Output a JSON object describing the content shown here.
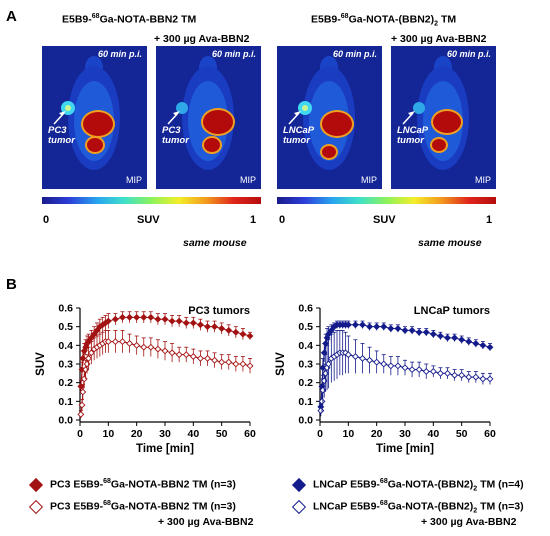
{
  "panel_a": {
    "letter": "A",
    "header_left_pre": "E5B9-",
    "header_left_sup": "68",
    "header_left_post": "Ga-NOTA-BBN2 TM",
    "header_right_pre": "E5B9-",
    "header_right_sup": "68",
    "header_right_mid": "Ga-NOTA-(BBN2)",
    "header_right_sub": "2",
    "header_right_post": " TM",
    "block_label_1": "+ 300 µg Ava-BBN2",
    "block_label_2": "+ 300 µg Ava-BBN2",
    "images": [
      {
        "time": "60 min p.i.",
        "tumor_line1": "PC3",
        "tumor_line2": "tumor",
        "mip": "MIP"
      },
      {
        "time": "60 min p.i.",
        "tumor_line1": "PC3",
        "tumor_line2": "tumor",
        "mip": "MIP"
      },
      {
        "time": "60 min p.i.",
        "tumor_line1": "LNCaP",
        "tumor_line2": "tumor",
        "mip": "MIP"
      },
      {
        "time": "60 min p.i.",
        "tumor_line1": "LNCaP",
        "tumor_line2": "tumor",
        "mip": "MIP"
      }
    ],
    "colorbar": {
      "min": "0",
      "label": "SUV",
      "max": "1"
    },
    "same_mouse": "same mouse",
    "colors": {
      "background": "#142596",
      "hot": "#b30b0b",
      "tumor_glow": "#3fd8f0"
    }
  },
  "panel_b": {
    "letter": "B",
    "legend": [
      {
        "pre": "PC3 E5B9-",
        "sup": "68",
        "post": "Ga-NOTA-BBN2 TM (n=3)",
        "filled": true,
        "color": "#a31212"
      },
      {
        "pre": "PC3 E5B9-",
        "sup": "68",
        "post": "Ga-NOTA-BBN2 TM (n=3)",
        "filled": false,
        "color": "#a31212",
        "sub_line": "+ 300 µg Ava-BBN2"
      },
      {
        "pre": "LNCaP E5B9-",
        "sup": "68",
        "mid": "Ga-NOTA-(BBN2)",
        "sub": "2",
        "post": " TM (n=4)",
        "filled": true,
        "color": "#141b8a"
      },
      {
        "pre": "LNCaP E5B9-",
        "sup": "68",
        "mid": "Ga-NOTA-(BBN2)",
        "sub": "2",
        "post": " TM (n=3)",
        "filled": false,
        "color": "#141b8a",
        "sub_line": "+ 300 µg Ava-BBN2"
      }
    ]
  },
  "chart_data": [
    {
      "type": "scatter",
      "title": "PC3 tumors",
      "xlabel": "Time [min]",
      "ylabel": "SUV",
      "xlim": [
        0,
        60
      ],
      "ylim": [
        0,
        0.6
      ],
      "x_ticks": [
        0,
        10,
        20,
        30,
        40,
        50,
        60
      ],
      "y_ticks": [
        0.0,
        0.1,
        0.2,
        0.3,
        0.4,
        0.5,
        0.6
      ],
      "series": [
        {
          "color": "#a31212",
          "filled": true,
          "x": [
            0.3,
            0.7,
            1.0,
            1.5,
            2.0,
            2.5,
            3.0,
            4.0,
            5.0,
            6.0,
            7.0,
            8.0,
            9.0,
            10.0,
            12.5,
            15.0,
            17.5,
            20.0,
            22.5,
            25.0,
            27.5,
            30.0,
            32.5,
            35.0,
            37.5,
            40.0,
            42.5,
            45.0,
            47.5,
            50.0,
            52.5,
            55.0,
            57.5,
            60.0
          ],
          "y": [
            0.18,
            0.27,
            0.33,
            0.37,
            0.39,
            0.41,
            0.42,
            0.44,
            0.46,
            0.48,
            0.5,
            0.51,
            0.52,
            0.53,
            0.54,
            0.55,
            0.55,
            0.55,
            0.55,
            0.55,
            0.54,
            0.54,
            0.53,
            0.53,
            0.52,
            0.52,
            0.51,
            0.5,
            0.5,
            0.49,
            0.48,
            0.47,
            0.46,
            0.45
          ],
          "err": [
            0.03,
            0.04,
            0.04,
            0.04,
            0.04,
            0.04,
            0.04,
            0.04,
            0.04,
            0.04,
            0.04,
            0.04,
            0.04,
            0.04,
            0.03,
            0.03,
            0.03,
            0.03,
            0.03,
            0.03,
            0.03,
            0.03,
            0.03,
            0.03,
            0.03,
            0.03,
            0.03,
            0.03,
            0.03,
            0.03,
            0.03,
            0.03,
            0.03,
            0.02
          ]
        },
        {
          "color": "#a31212",
          "filled": false,
          "x": [
            0.3,
            0.7,
            1.0,
            1.5,
            2.0,
            2.5,
            3.0,
            4.0,
            5.0,
            6.0,
            7.0,
            8.0,
            9.0,
            10.0,
            12.5,
            15.0,
            17.5,
            20.0,
            22.5,
            25.0,
            27.5,
            30.0,
            32.5,
            35.0,
            37.5,
            40.0,
            42.5,
            45.0,
            47.5,
            50.0,
            52.5,
            55.0,
            57.5,
            60.0
          ],
          "y": [
            0.03,
            0.08,
            0.15,
            0.22,
            0.27,
            0.3,
            0.33,
            0.36,
            0.38,
            0.39,
            0.4,
            0.41,
            0.42,
            0.42,
            0.42,
            0.42,
            0.41,
            0.4,
            0.39,
            0.39,
            0.38,
            0.37,
            0.36,
            0.35,
            0.35,
            0.34,
            0.33,
            0.33,
            0.32,
            0.31,
            0.31,
            0.3,
            0.3,
            0.29
          ],
          "err": [
            0.02,
            0.03,
            0.04,
            0.05,
            0.05,
            0.05,
            0.06,
            0.06,
            0.06,
            0.06,
            0.06,
            0.06,
            0.06,
            0.06,
            0.06,
            0.06,
            0.05,
            0.05,
            0.05,
            0.05,
            0.05,
            0.05,
            0.05,
            0.04,
            0.04,
            0.04,
            0.04,
            0.04,
            0.04,
            0.04,
            0.04,
            0.04,
            0.04,
            0.04
          ]
        }
      ]
    },
    {
      "type": "scatter",
      "title": "LNCaP tumors",
      "xlabel": "Time [min]",
      "ylabel": "SUV",
      "xlim": [
        0,
        60
      ],
      "ylim": [
        0,
        0.6
      ],
      "x_ticks": [
        0,
        10,
        20,
        30,
        40,
        50,
        60
      ],
      "y_ticks": [
        0.0,
        0.1,
        0.2,
        0.3,
        0.4,
        0.5,
        0.6
      ],
      "series": [
        {
          "color": "#141b8a",
          "filled": true,
          "x": [
            0.3,
            0.7,
            1.0,
            1.5,
            2.0,
            2.5,
            3.0,
            4.0,
            5.0,
            6.0,
            7.0,
            8.0,
            9.0,
            10.0,
            12.5,
            15.0,
            17.5,
            20.0,
            22.5,
            25.0,
            27.5,
            30.0,
            32.5,
            35.0,
            37.5,
            40.0,
            42.5,
            45.0,
            47.5,
            50.0,
            52.5,
            55.0,
            57.5,
            60.0
          ],
          "y": [
            0.07,
            0.18,
            0.28,
            0.36,
            0.41,
            0.44,
            0.46,
            0.48,
            0.5,
            0.51,
            0.51,
            0.51,
            0.51,
            0.51,
            0.51,
            0.51,
            0.5,
            0.5,
            0.5,
            0.49,
            0.49,
            0.48,
            0.48,
            0.47,
            0.47,
            0.46,
            0.45,
            0.44,
            0.44,
            0.43,
            0.42,
            0.41,
            0.4,
            0.39
          ],
          "err": [
            0.02,
            0.04,
            0.05,
            0.05,
            0.05,
            0.05,
            0.04,
            0.03,
            0.02,
            0.02,
            0.02,
            0.02,
            0.02,
            0.02,
            0.02,
            0.02,
            0.02,
            0.02,
            0.02,
            0.02,
            0.02,
            0.02,
            0.02,
            0.02,
            0.02,
            0.02,
            0.02,
            0.02,
            0.02,
            0.02,
            0.02,
            0.02,
            0.02,
            0.02
          ]
        },
        {
          "color": "#141b8a",
          "filled": false,
          "x": [
            0.3,
            0.7,
            1.0,
            1.5,
            2.0,
            2.5,
            3.0,
            4.0,
            5.0,
            6.0,
            7.0,
            8.0,
            9.0,
            10.0,
            12.5,
            15.0,
            17.5,
            20.0,
            22.5,
            25.0,
            27.5,
            30.0,
            32.5,
            35.0,
            37.5,
            40.0,
            42.5,
            45.0,
            47.5,
            50.0,
            52.5,
            55.0,
            57.5,
            60.0
          ],
          "y": [
            0.05,
            0.1,
            0.16,
            0.21,
            0.25,
            0.28,
            0.3,
            0.33,
            0.34,
            0.35,
            0.36,
            0.36,
            0.36,
            0.35,
            0.34,
            0.33,
            0.32,
            0.31,
            0.3,
            0.29,
            0.29,
            0.28,
            0.27,
            0.27,
            0.26,
            0.26,
            0.25,
            0.25,
            0.24,
            0.24,
            0.23,
            0.23,
            0.22,
            0.22
          ],
          "err": [
            0.03,
            0.06,
            0.08,
            0.09,
            0.1,
            0.12,
            0.13,
            0.13,
            0.13,
            0.13,
            0.12,
            0.12,
            0.11,
            0.1,
            0.09,
            0.08,
            0.07,
            0.06,
            0.05,
            0.05,
            0.05,
            0.04,
            0.04,
            0.04,
            0.04,
            0.03,
            0.03,
            0.03,
            0.03,
            0.03,
            0.03,
            0.03,
            0.03,
            0.03
          ]
        }
      ]
    }
  ]
}
